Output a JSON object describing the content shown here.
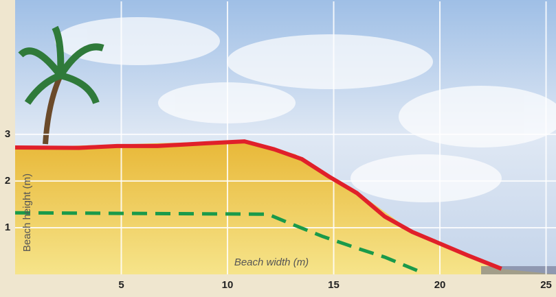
{
  "chart_data": {
    "type": "line",
    "x_label": "Beach width (m)",
    "y_label": "Beach height (m)",
    "xlim": [
      0,
      25.5
    ],
    "ylim": [
      0,
      5.85
    ],
    "xticks": [
      5,
      10,
      15,
      20,
      25
    ],
    "yticks": [
      1,
      2,
      3
    ],
    "grid": true,
    "series": [
      {
        "color": "#e0202a",
        "line_style": "solid",
        "x": [
          0,
          3.0,
          4.8,
          6.7,
          9.0,
          10.8,
          12.2,
          13.5,
          14.8,
          16.1,
          17.4,
          18.7,
          20.0,
          21.3,
          22.9
        ],
        "values": [
          2.72,
          2.71,
          2.75,
          2.75,
          2.81,
          2.85,
          2.68,
          2.47,
          2.09,
          1.74,
          1.24,
          0.91,
          0.66,
          0.41,
          0.12
        ]
      },
      {
        "color": "#1a9a4a",
        "line_style": "dashed",
        "x": [
          0,
          11.9,
          12.9,
          14.5,
          16.1,
          17.4,
          19.0
        ],
        "values": [
          1.32,
          1.29,
          1.1,
          0.81,
          0.56,
          0.37,
          0.07
        ]
      }
    ]
  }
}
